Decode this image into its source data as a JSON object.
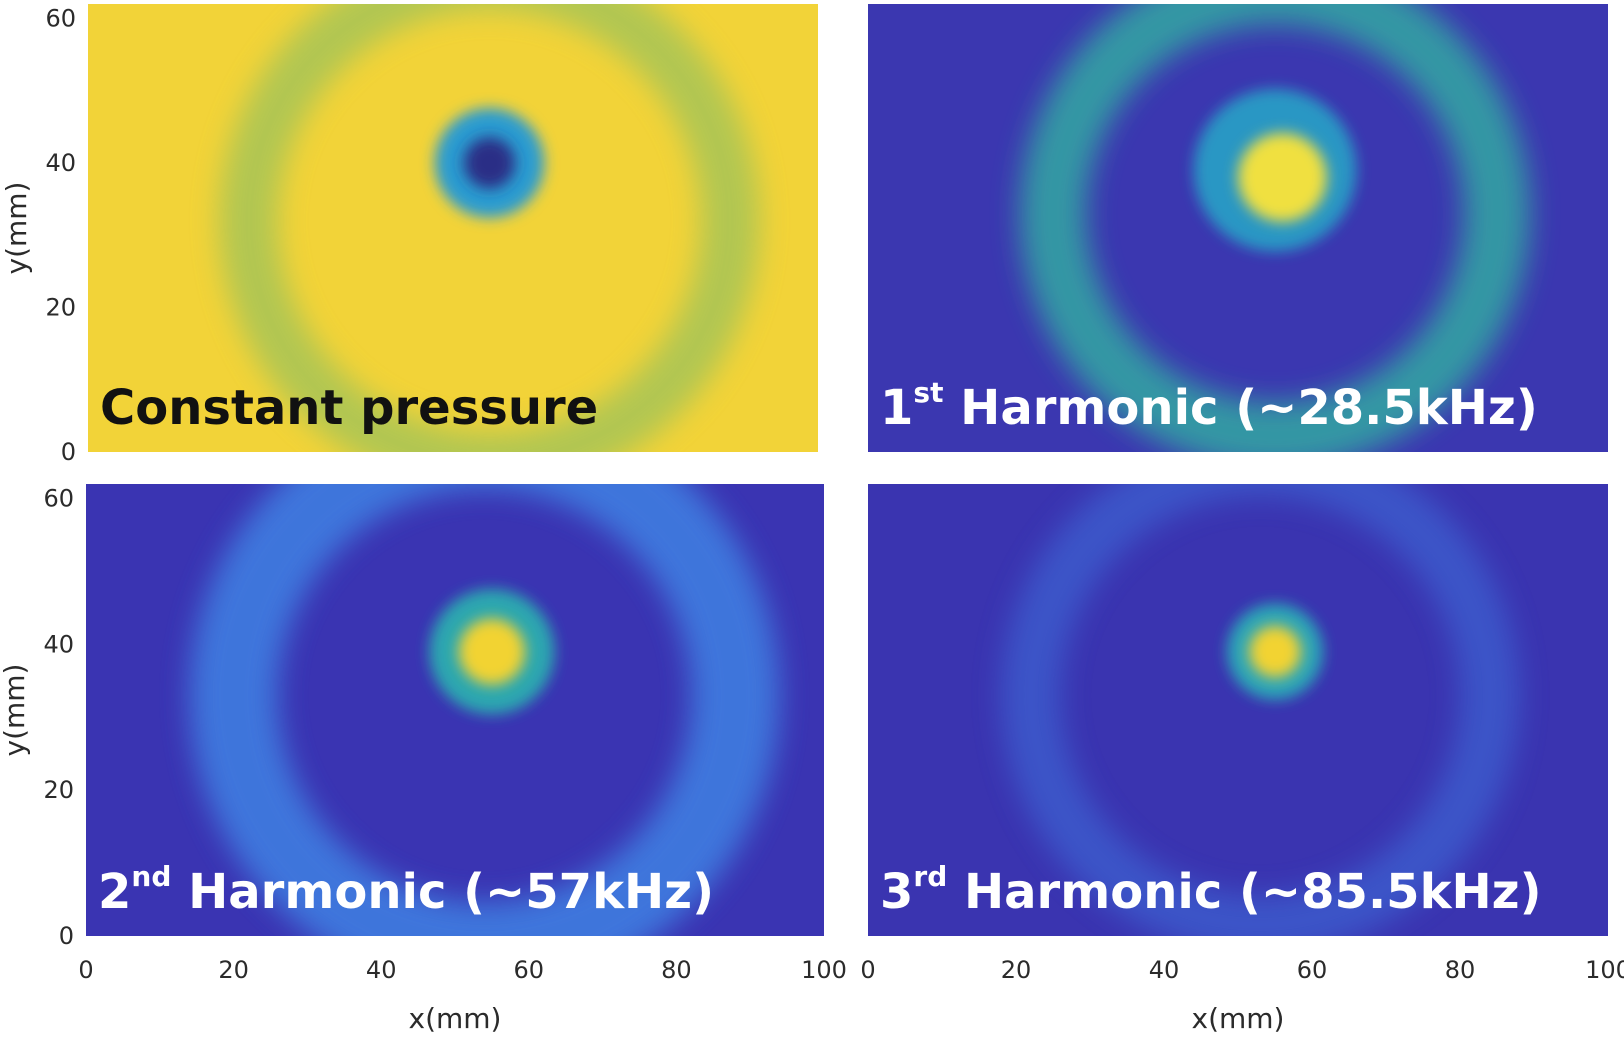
{
  "chart_data": [
    {
      "type": "heatmap",
      "label_main": "Constant pressure",
      "label_sup": "",
      "label_rest": "",
      "label_color": "#111111",
      "xlim": [
        0,
        100
      ],
      "ylim": [
        0,
        62
      ],
      "xticks": [],
      "yticks": [
        "0",
        "20",
        "40",
        "60"
      ],
      "ylabel": "y(mm)",
      "xlabel": "",
      "background_color": "#f2d338",
      "features": [
        {
          "kind": "ring",
          "cx": 55,
          "cy": 32,
          "r": 33,
          "width": 8,
          "color": "#8fc060",
          "opacity": 0.65
        },
        {
          "kind": "spot",
          "cx": 55,
          "cy": 40,
          "r": 7.5,
          "color": "#2a9bd0",
          "opacity": 1
        },
        {
          "kind": "spot",
          "cx": 55,
          "cy": 40,
          "r": 3.5,
          "color": "#2a2f86",
          "opacity": 1
        }
      ]
    },
    {
      "type": "heatmap",
      "label_main": "1",
      "label_sup": "st",
      "label_rest": " Harmonic (~28.5kHz)",
      "label_color": "#ffffff",
      "xlim": [
        0,
        100
      ],
      "ylim": [
        0,
        62
      ],
      "xticks": [],
      "yticks": [],
      "ylabel": "",
      "xlabel": "",
      "background_color": "#3b37b0",
      "features": [
        {
          "kind": "ring",
          "cx": 55,
          "cy": 33,
          "r": 30,
          "width": 9,
          "color": "#33b7a0",
          "opacity": 0.75
        },
        {
          "kind": "spot",
          "cx": 55,
          "cy": 39,
          "r": 11,
          "color": "#28a8c8",
          "opacity": 0.85
        },
        {
          "kind": "spot",
          "cx": 56,
          "cy": 38,
          "r": 6,
          "color": "#f0e040",
          "opacity": 1
        }
      ]
    },
    {
      "type": "heatmap",
      "label_main": "2",
      "label_sup": "nd",
      "label_rest": " Harmonic (~57kHz)",
      "label_color": "#ffffff",
      "xlim": [
        0,
        100
      ],
      "ylim": [
        0,
        62
      ],
      "xticks": [
        "0",
        "20",
        "40",
        "60",
        "80",
        "100"
      ],
      "yticks": [
        "0",
        "20",
        "40",
        "60"
      ],
      "ylabel": "y(mm)",
      "xlabel": "x(mm)",
      "background_color": "#3a34b2",
      "features": [
        {
          "kind": "ring",
          "cx": 54,
          "cy": 33,
          "r": 34,
          "width": 12,
          "color": "#3f86e6",
          "opacity": 0.8
        },
        {
          "kind": "spot",
          "cx": 55,
          "cy": 39,
          "r": 8.5,
          "color": "#2cb4b0",
          "opacity": 0.9
        },
        {
          "kind": "spot",
          "cx": 55,
          "cy": 39,
          "r": 4.5,
          "color": "#f2d330",
          "opacity": 1
        }
      ]
    },
    {
      "type": "heatmap",
      "label_main": "3",
      "label_sup": "rd",
      "label_rest": " Harmonic (~85.5kHz)",
      "label_color": "#ffffff",
      "xlim": [
        0,
        100
      ],
      "ylim": [
        0,
        62
      ],
      "xticks": [
        "0",
        "20",
        "40",
        "60",
        "80",
        "100"
      ],
      "yticks": [],
      "ylabel": "",
      "xlabel": "x(mm)",
      "background_color": "#3a34b0",
      "features": [
        {
          "kind": "ring",
          "cx": 53,
          "cy": 33,
          "r": 31,
          "width": 8,
          "color": "#3d6ad8",
          "opacity": 0.6
        },
        {
          "kind": "spot",
          "cx": 55,
          "cy": 39,
          "r": 6.5,
          "color": "#2cb2b8",
          "opacity": 0.9
        },
        {
          "kind": "spot",
          "cx": 55,
          "cy": 39,
          "r": 3.5,
          "color": "#f2d330",
          "opacity": 1
        }
      ]
    }
  ]
}
